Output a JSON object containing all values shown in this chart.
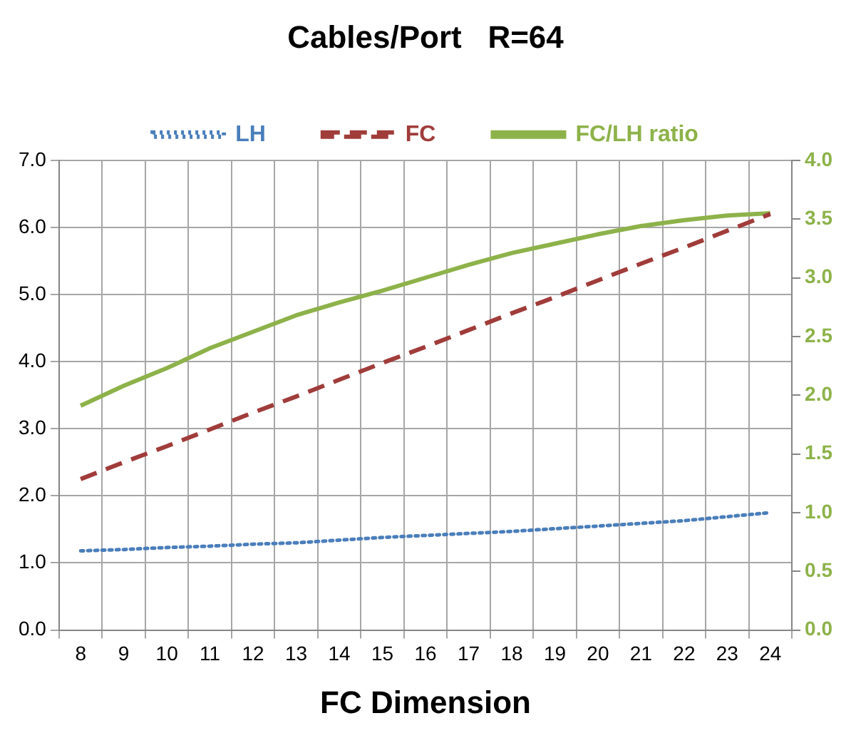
{
  "chart_data": {
    "type": "line",
    "title": "Cables/Port   R=64",
    "xlabel": "FC Dimension",
    "categories": [
      "8",
      "9",
      "10",
      "11",
      "12",
      "13",
      "14",
      "15",
      "16",
      "17",
      "18",
      "19",
      "20",
      "21",
      "22",
      "23",
      "24"
    ],
    "series": [
      {
        "name": "LH",
        "color": "#4a7ebb",
        "line_style": "dotted",
        "values": [
          1.18,
          1.2,
          1.23,
          1.25,
          1.28,
          1.3,
          1.34,
          1.38,
          1.41,
          1.44,
          1.47,
          1.51,
          1.55,
          1.59,
          1.63,
          1.69,
          1.75
        ]
      },
      {
        "name": "FC",
        "color": "#a03c3a",
        "line_style": "dashed",
        "values": [
          2.25,
          2.5,
          2.74,
          2.99,
          3.24,
          3.48,
          3.73,
          3.98,
          4.22,
          4.47,
          4.72,
          4.96,
          5.21,
          5.46,
          5.7,
          5.95,
          6.2
        ]
      },
      {
        "name": "FC/LH ratio",
        "color": "#8db24a",
        "line_style": "solid",
        "axis": "y2",
        "values": [
          1.91,
          2.08,
          2.23,
          2.4,
          2.54,
          2.68,
          2.79,
          2.89,
          3.0,
          3.11,
          3.21,
          3.29,
          3.37,
          3.44,
          3.49,
          3.53,
          3.55
        ]
      }
    ],
    "ylim": [
      0,
      7
    ],
    "yticks": [
      {
        "value": 0,
        "label": "0.0"
      },
      {
        "value": 1,
        "label": "1.0"
      },
      {
        "value": 2,
        "label": "2.0"
      },
      {
        "value": 3,
        "label": "3.0"
      },
      {
        "value": 4,
        "label": "4.0"
      },
      {
        "value": 5,
        "label": "5.0"
      },
      {
        "value": 6,
        "label": "6.0"
      },
      {
        "value": 7,
        "label": "7.0"
      }
    ],
    "y2lim": [
      0,
      4
    ],
    "y2ticks": [
      {
        "value": 0,
        "label": "0.0"
      },
      {
        "value": 0.5,
        "label": "0.5"
      },
      {
        "value": 1,
        "label": "1.0"
      },
      {
        "value": 1.5,
        "label": "1.5"
      },
      {
        "value": 2,
        "label": "2.0"
      },
      {
        "value": 2.5,
        "label": "2.5"
      },
      {
        "value": 3,
        "label": "3.0"
      },
      {
        "value": 3.5,
        "label": "3.5"
      },
      {
        "value": 4,
        "label": "4.0"
      }
    ],
    "grid": true,
    "legend": "top",
    "marker": "none"
  }
}
